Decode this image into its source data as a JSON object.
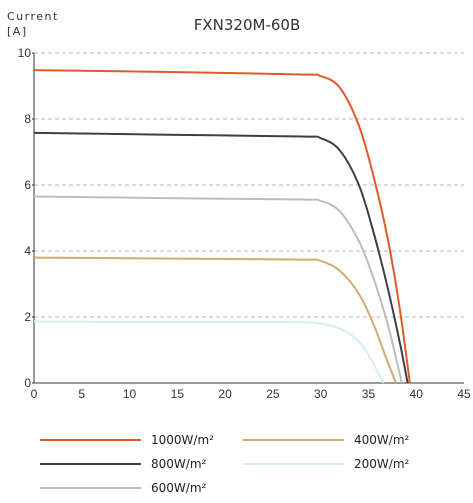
{
  "chart_data": {
    "type": "line",
    "title": "FXN320M-60B",
    "ylabel": [
      "Current",
      "[A]"
    ],
    "xlabel": "",
    "xlim": [
      0,
      45
    ],
    "ylim": [
      0,
      10
    ],
    "x_ticks": [
      0,
      5,
      10,
      15,
      20,
      25,
      30,
      35,
      40,
      45
    ],
    "y_ticks": [
      0,
      2,
      4,
      6,
      8,
      10
    ],
    "grid": "dashed horizontal",
    "legend_position": "bottom",
    "series": [
      {
        "name": "1000W/m²",
        "color": "#e05a2b",
        "points": [
          [
            0,
            9.48
          ],
          [
            15,
            9.42
          ],
          [
            28,
            9.35
          ],
          [
            30,
            9.3
          ],
          [
            32,
            8.95
          ],
          [
            34,
            7.8
          ],
          [
            35.5,
            6.3
          ],
          [
            37,
            4.4
          ],
          [
            38.2,
            2.4
          ],
          [
            39.2,
            0.3
          ],
          [
            39.3,
            0
          ]
        ]
      },
      {
        "name": "800W/m²",
        "color": "#3a3f4a",
        "points": [
          [
            0,
            7.58
          ],
          [
            15,
            7.52
          ],
          [
            28,
            7.47
          ],
          [
            30,
            7.42
          ],
          [
            32,
            7.05
          ],
          [
            34,
            6.0
          ],
          [
            35.5,
            4.6
          ],
          [
            37,
            2.9
          ],
          [
            38.3,
            1.2
          ],
          [
            39.1,
            0
          ]
        ]
      },
      {
        "name": "600W/m²",
        "color": "#bdbdbd",
        "points": [
          [
            0,
            5.65
          ],
          [
            15,
            5.6
          ],
          [
            28,
            5.56
          ],
          [
            30,
            5.52
          ],
          [
            32,
            5.2
          ],
          [
            34,
            4.3
          ],
          [
            35.5,
            3.2
          ],
          [
            37,
            1.8
          ],
          [
            38.1,
            0.5
          ],
          [
            38.5,
            0
          ]
        ]
      },
      {
        "name": "400W/m²",
        "color": "#d1ac72",
        "points": [
          [
            0,
            3.8
          ],
          [
            15,
            3.77
          ],
          [
            28,
            3.74
          ],
          [
            30,
            3.7
          ],
          [
            32,
            3.4
          ],
          [
            34,
            2.7
          ],
          [
            35.5,
            1.8
          ],
          [
            36.8,
            0.8
          ],
          [
            37.6,
            0.2
          ],
          [
            37.9,
            0
          ]
        ]
      },
      {
        "name": "200W/m²",
        "color": "#d7ecf6",
        "points": [
          [
            0,
            1.86
          ],
          [
            15,
            1.85
          ],
          [
            28,
            1.84
          ],
          [
            30,
            1.8
          ],
          [
            32,
            1.65
          ],
          [
            34,
            1.25
          ],
          [
            35.3,
            0.7
          ],
          [
            36.2,
            0.2
          ],
          [
            36.6,
            0
          ]
        ]
      }
    ]
  }
}
